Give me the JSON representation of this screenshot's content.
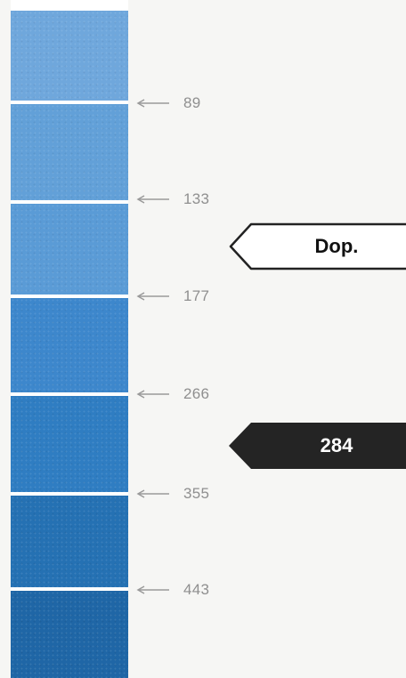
{
  "strip": {
    "swatches": [
      {
        "color": "#6fa7dc"
      },
      {
        "color": "#62a0d8"
      },
      {
        "color": "#5a9bd6"
      },
      {
        "color": "#3d87cc"
      },
      {
        "color": "#2f7dc2"
      },
      {
        "color": "#2571b3"
      },
      {
        "color": "#1f66a6"
      }
    ]
  },
  "markers": [
    {
      "value": "89"
    },
    {
      "value": "133"
    },
    {
      "value": "177"
    },
    {
      "value": "266"
    },
    {
      "value": "355"
    },
    {
      "value": "443"
    }
  ],
  "tags": {
    "light": {
      "label": "Dop."
    },
    "dark": {
      "label": "284"
    }
  },
  "colors": {
    "background": "#f6f6f4",
    "divider": "#ffffff",
    "marker_text": "#8f8f8f",
    "arrow": "#9a9a9a",
    "tag_light_fill": "#ffffff",
    "tag_light_border": "#222222",
    "tag_dark_fill": "#242424"
  }
}
